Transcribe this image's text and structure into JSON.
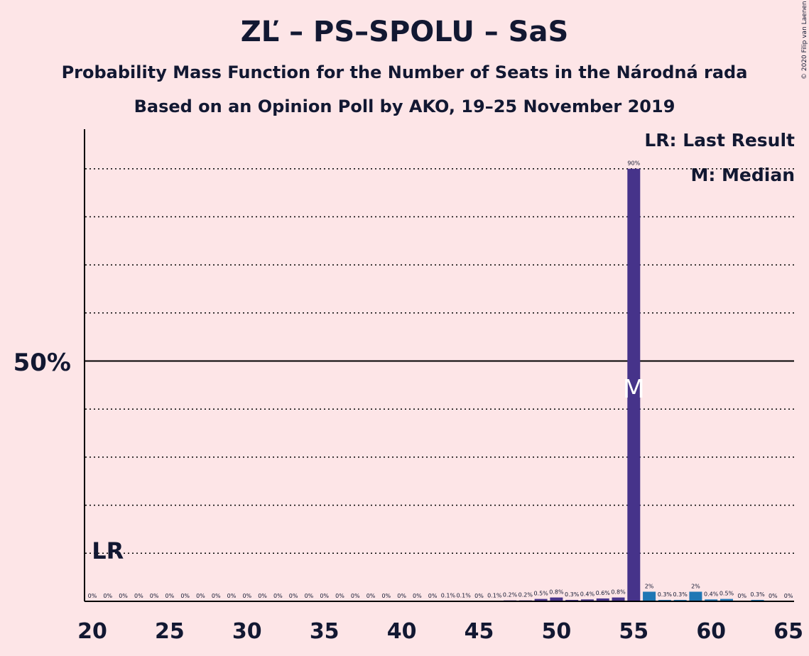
{
  "title": "ZĽ – PS–SPOLU – SaS",
  "subtitle_line1": "Probability Mass Function for the Number of Seats in the Národná rada",
  "subtitle_line2": "Based on an Opinion Poll by AKO, 19–25 November 2019",
  "copyright": "© 2020 Filip van Laenen",
  "legend": {
    "last_result": "LR: Last Result",
    "median": "M: Median"
  },
  "colors": {
    "background": "#fde5e7",
    "bar_dark": "#46338a",
    "bar_light": "#1f77b4",
    "text": "#121832"
  },
  "chart_data": {
    "type": "bar",
    "x": [
      20,
      21,
      22,
      23,
      24,
      25,
      26,
      27,
      28,
      29,
      30,
      31,
      32,
      33,
      34,
      35,
      36,
      37,
      38,
      39,
      40,
      41,
      42,
      43,
      44,
      45,
      46,
      47,
      48,
      49,
      50,
      51,
      52,
      53,
      54,
      55,
      56,
      57,
      58,
      59,
      60,
      61,
      62,
      63,
      64,
      65
    ],
    "values": [
      0,
      0,
      0,
      0,
      0,
      0,
      0,
      0,
      0,
      0,
      0,
      0,
      0,
      0,
      0,
      0,
      0,
      0,
      0,
      0,
      0,
      0,
      0,
      0.1,
      0.1,
      0,
      0.1,
      0.2,
      0.2,
      0.5,
      0.8,
      0.3,
      0.4,
      0.6,
      0.8,
      90,
      2,
      0.3,
      0.3,
      2,
      0.4,
      0.5,
      0,
      0.3,
      0,
      0
    ],
    "labels": [
      "0%",
      "0%",
      "0%",
      "0%",
      "0%",
      "0%",
      "0%",
      "0%",
      "0%",
      "0%",
      "0%",
      "0%",
      "0%",
      "0%",
      "0%",
      "0%",
      "0%",
      "0%",
      "0%",
      "0%",
      "0%",
      "0%",
      "0%",
      "0.1%",
      "0.1%",
      "0%",
      "0.1%",
      "0.2%",
      "0.2%",
      "0.5%",
      "0.8%",
      "0.3%",
      "0.4%",
      "0.6%",
      "0.8%",
      "90%",
      "2%",
      "0.3%",
      "0.3%",
      "2%",
      "0.4%",
      "0.5%",
      "0%",
      "0.3%",
      "0%",
      "0%"
    ],
    "x_ticks": [
      20,
      25,
      30,
      35,
      40,
      45,
      50,
      55,
      60,
      65
    ],
    "y_tick_label": "50%",
    "y_tick_value": 50,
    "ylim": [
      0,
      98
    ],
    "gridlines": [
      10,
      20,
      30,
      40,
      60,
      70,
      80,
      90
    ],
    "median_seat": 55,
    "last_result_seat": 21,
    "last_result_label": "LR",
    "median_marker": "M"
  }
}
